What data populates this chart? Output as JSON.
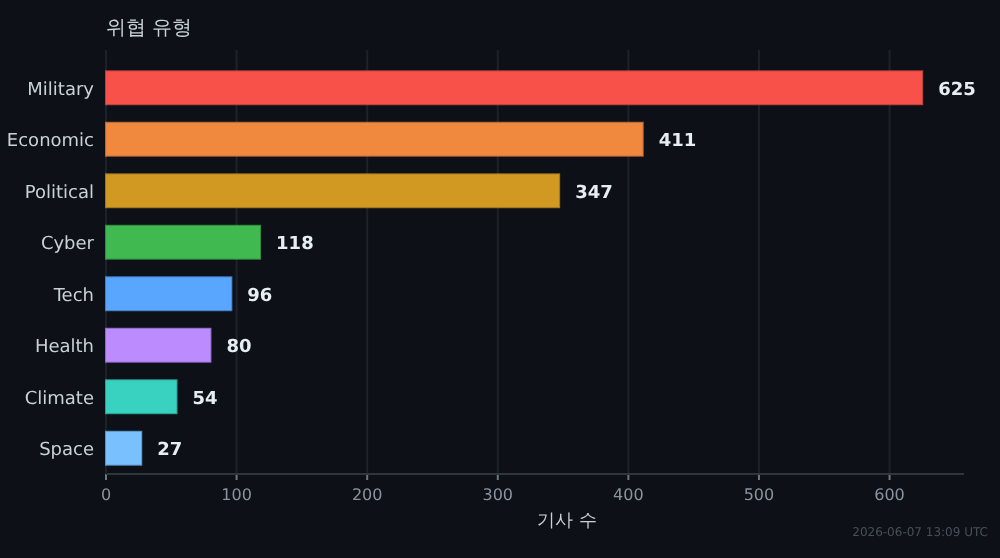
{
  "chart_data": {
    "type": "bar",
    "orientation": "horizontal",
    "title": "위협 유형",
    "xlabel": "기사 수",
    "categories": [
      "Military",
      "Economic",
      "Political",
      "Cyber",
      "Tech",
      "Health",
      "Climate",
      "Space"
    ],
    "values": [
      625,
      411,
      347,
      118,
      96,
      80,
      54,
      27
    ],
    "colors": [
      "#f85149",
      "#f0883e",
      "#d29922",
      "#3fb950",
      "#58a6ff",
      "#bc8cff",
      "#39d2c0",
      "#79c0ff"
    ],
    "xlim": [
      0,
      657
    ],
    "xticks": [
      0,
      100,
      200,
      300,
      400,
      500,
      600
    ],
    "grid": "x",
    "data_labels": true,
    "annotations": [
      "2026-06-07 13:09 UTC"
    ]
  }
}
